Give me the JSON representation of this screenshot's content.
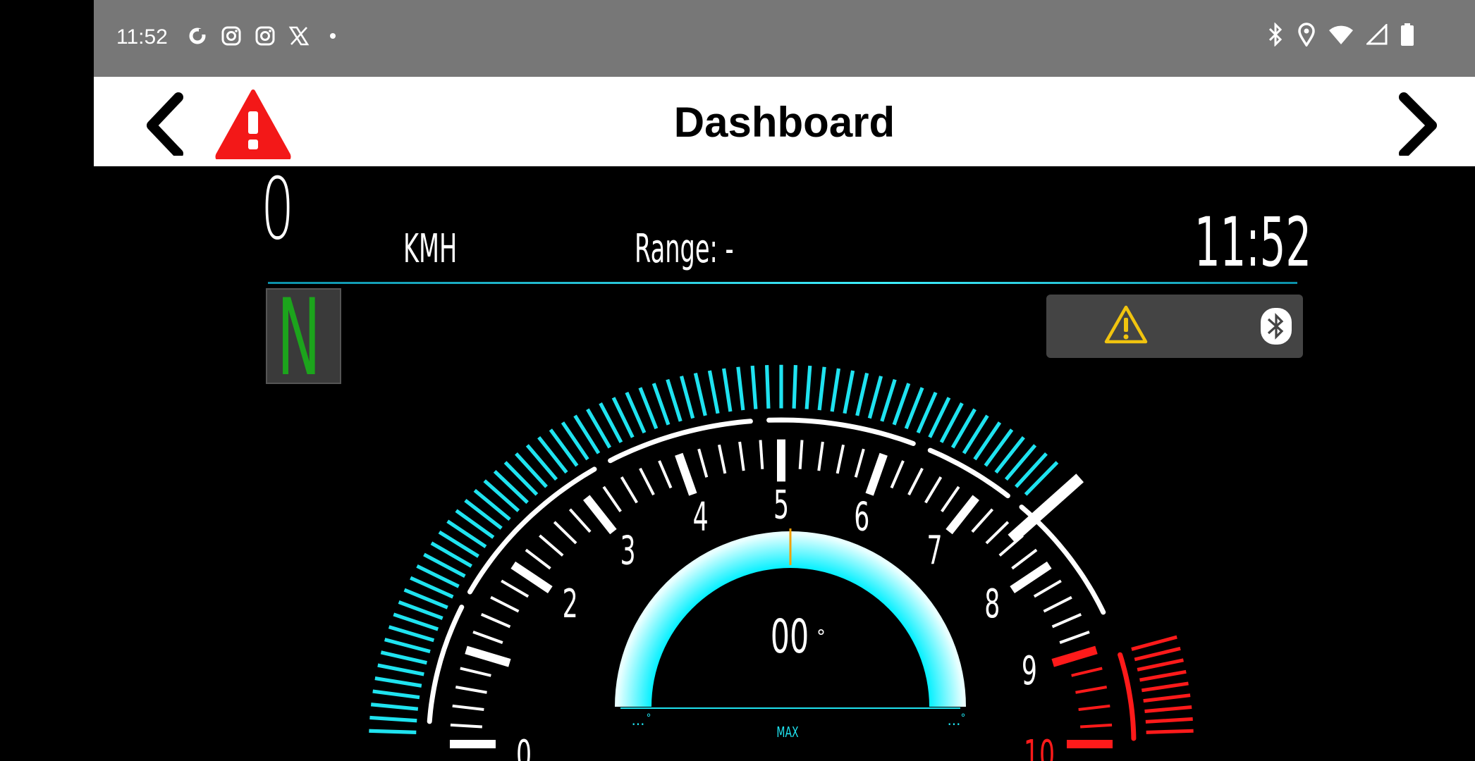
{
  "status_bar": {
    "time": "11:52",
    "left_icons": [
      "sync-icon",
      "instagram-icon",
      "instagram-icon",
      "x-icon",
      "dot-icon"
    ],
    "right_icons": [
      "bluetooth-icon",
      "location-icon",
      "wifi-icon",
      "signal-icon",
      "battery-icon"
    ]
  },
  "app_bar": {
    "title": "Dashboard",
    "back_icon": "chevron-left-icon",
    "alert_icon": "warning-triangle-icon",
    "forward_icon": "chevron-right-icon"
  },
  "readouts": {
    "speed": "0",
    "speed_unit": "KMH",
    "range_label": "Range:",
    "range_value": "-",
    "clock": "11:52",
    "gear": "N"
  },
  "warning_panel": {
    "icons": [
      "warning-icon",
      "bluetooth-icon"
    ]
  },
  "tachometer": {
    "scale_labels": [
      "0",
      "2",
      "3",
      "4",
      "5",
      "6",
      "7",
      "8",
      "9",
      "10"
    ],
    "redline_from": 9,
    "needle_value": 7.55,
    "colors": {
      "tick": "#ffffff",
      "cyan": "#1fe3f0",
      "red": "#ff1a1a"
    }
  },
  "lean_gauge": {
    "value_text": "00",
    "degree_mark": "°",
    "left_label": "...",
    "right_label": "...",
    "center_label": "MAX",
    "left_small": "°",
    "right_small": "°"
  }
}
